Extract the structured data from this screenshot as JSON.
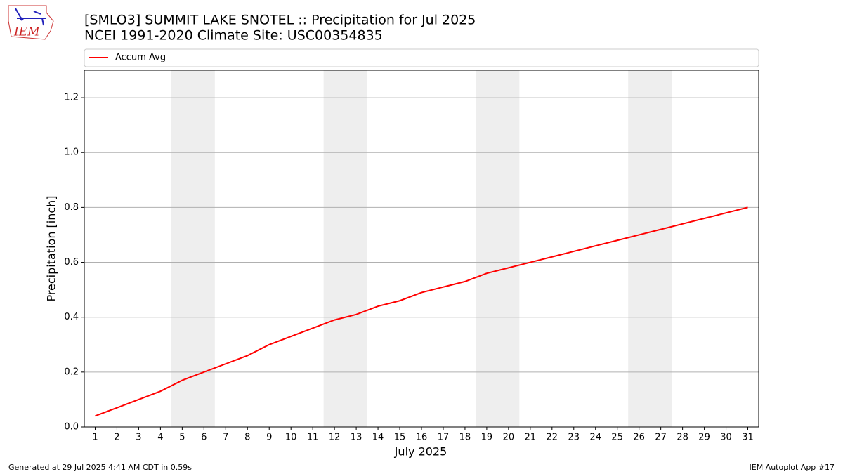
{
  "logo_text": "IEM",
  "footer_left": "Generated at 29 Jul 2025 4:41 AM CDT in 0.59s",
  "footer_right": "IEM Autoplot App #17",
  "chart_data": {
    "type": "line",
    "title": "[SMLO3] SUMMIT LAKE SNOTEL :: Precipitation for Jul 2025",
    "subtitle": "NCEI 1991-2020 Climate Site: USC00354835",
    "xlabel": "July 2025",
    "ylabel": "Precipitation [inch]",
    "x": [
      1,
      2,
      3,
      4,
      5,
      6,
      7,
      8,
      9,
      10,
      11,
      12,
      13,
      14,
      15,
      16,
      17,
      18,
      19,
      20,
      21,
      22,
      23,
      24,
      25,
      26,
      27,
      28,
      29,
      30,
      31
    ],
    "series": [
      {
        "name": "Accum Avg",
        "color": "#ff0000",
        "values": [
          0.04,
          0.07,
          0.1,
          0.13,
          0.17,
          0.2,
          0.23,
          0.26,
          0.3,
          0.33,
          0.36,
          0.39,
          0.41,
          0.44,
          0.46,
          0.49,
          0.51,
          0.53,
          0.56,
          0.58,
          0.6,
          0.62,
          0.64,
          0.66,
          0.68,
          0.7,
          0.72,
          0.74,
          0.76,
          0.78,
          0.8
        ]
      }
    ],
    "shaded_spans": [
      [
        4.5,
        6.5
      ],
      [
        11.5,
        13.5
      ],
      [
        18.5,
        20.5
      ],
      [
        25.5,
        27.5
      ]
    ],
    "shade_color": "#eeeeee",
    "xlim": [
      0.5,
      31.5
    ],
    "xticks": [
      1,
      2,
      3,
      4,
      5,
      6,
      7,
      8,
      9,
      10,
      11,
      12,
      13,
      14,
      15,
      16,
      17,
      18,
      19,
      20,
      21,
      22,
      23,
      24,
      25,
      26,
      27,
      28,
      29,
      30,
      31
    ],
    "ylim": [
      0,
      1.3
    ],
    "yticks": [
      {
        "value": 0,
        "label": "0.0"
      },
      {
        "value": 0.2,
        "label": "0.2"
      },
      {
        "value": 0.4,
        "label": "0.4"
      },
      {
        "value": 0.6,
        "label": "0.6"
      },
      {
        "value": 0.8,
        "label": "0.8"
      },
      {
        "value": 1.0,
        "label": "1.0"
      },
      {
        "value": 1.2,
        "label": "1.2"
      }
    ],
    "grid": true,
    "legend": "top"
  }
}
